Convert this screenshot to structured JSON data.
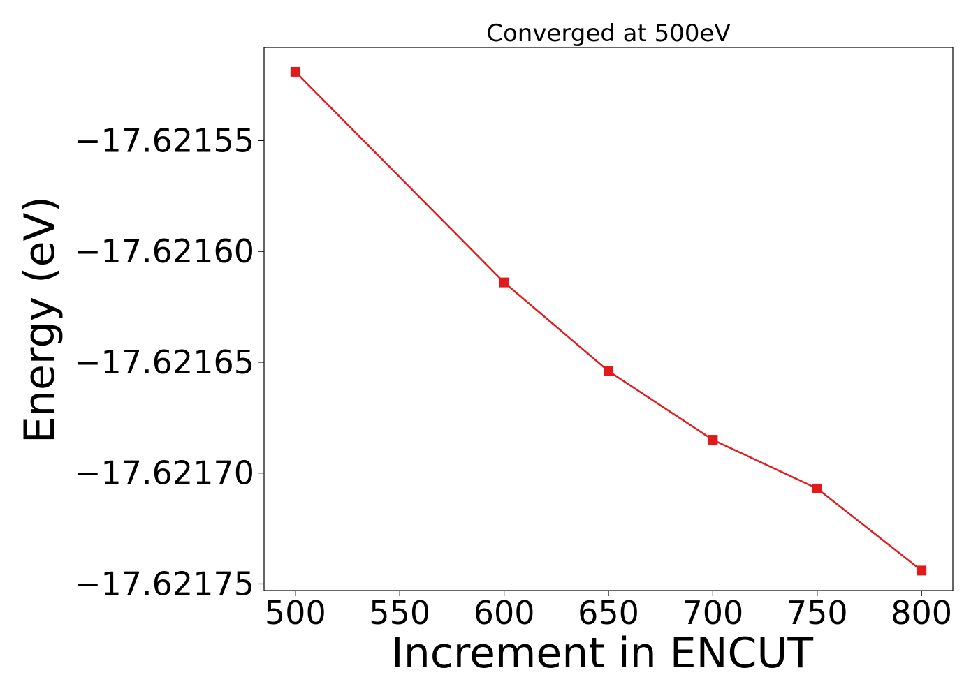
{
  "chart_data": {
    "type": "line",
    "title": "Converged at 500eV",
    "xlabel": "Increment in ENCUT",
    "ylabel": "Energy (eV)",
    "x": [
      500,
      600,
      650,
      700,
      750,
      800
    ],
    "series": [
      {
        "values": [
          -17.621519,
          -17.621614,
          -17.621654,
          -17.621685,
          -17.621707,
          -17.621744
        ],
        "color": "#e31a1c",
        "marker": "square"
      }
    ],
    "xticks": [
      500,
      550,
      600,
      650,
      700,
      750,
      800
    ],
    "xtick_labels": [
      "500",
      "550",
      "600",
      "650",
      "700",
      "750",
      "800"
    ],
    "yticks": [
      -17.62155,
      -17.6216,
      -17.62165,
      -17.6217,
      -17.62175
    ],
    "ytick_labels": [
      "−17.62155",
      "−17.62160",
      "−17.62165",
      "−17.62170",
      "−17.62175"
    ],
    "xlim": [
      485,
      815
    ],
    "ylim": [
      -17.621753,
      -17.621508
    ],
    "grid": false,
    "legend": "none"
  }
}
